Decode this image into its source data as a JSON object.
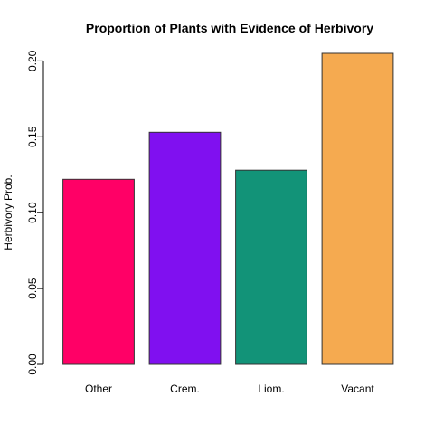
{
  "chart_data": {
    "type": "bar",
    "title": "Proportion of Plants with Evidence of Herbivory",
    "xlabel": "",
    "ylabel": "Herbivory Prob.",
    "categories": [
      "Other",
      "Crem.",
      "Liom.",
      "Vacant"
    ],
    "values": [
      0.122,
      0.153,
      0.128,
      0.205
    ],
    "colors": [
      "#ff0066",
      "#8010f0",
      "#129378",
      "#f5aa50"
    ],
    "bar_border_color": "#333333",
    "ylim": [
      0,
      0.205
    ],
    "yticks": [
      0.0,
      0.05,
      0.1,
      0.15,
      0.2
    ],
    "ytick_labels": [
      "0.00",
      "0.05",
      "0.10",
      "0.15",
      "0.20"
    ],
    "grid": false,
    "legend": "none"
  }
}
